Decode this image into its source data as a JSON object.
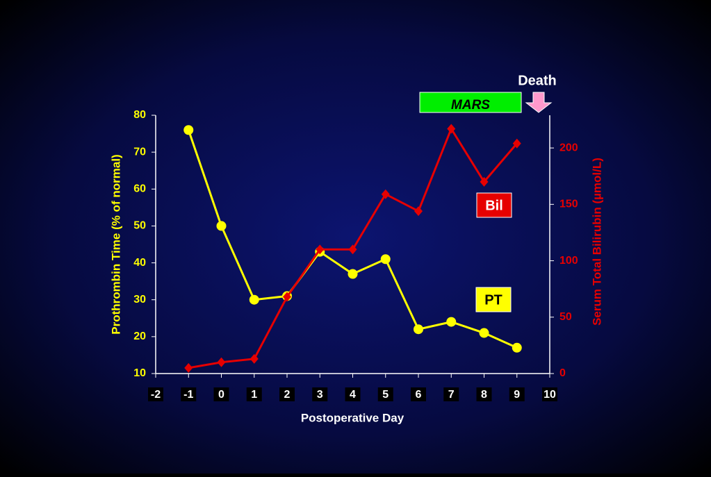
{
  "chart_data": {
    "type": "line",
    "x": [
      -1,
      0,
      1,
      2,
      3,
      4,
      5,
      6,
      7,
      8,
      9
    ],
    "xlim": [
      -2,
      10
    ],
    "xticks": [
      -2,
      -1,
      0,
      1,
      2,
      3,
      4,
      5,
      6,
      7,
      8,
      9,
      10
    ],
    "xlabel": "Postoperative Day",
    "ylabel": "Prothrombin Time (% of normal)",
    "y2label": "Serum Total Bilirubin (µmol/L)",
    "ylim": [
      10,
      80
    ],
    "yticks": [
      10,
      20,
      30,
      40,
      50,
      60,
      70,
      80
    ],
    "y2lim": [
      0,
      229
    ],
    "y2ticks": [
      0,
      50,
      100,
      150,
      200
    ],
    "series": [
      {
        "name": "PT",
        "color": "#ffff00",
        "values": [
          76,
          50,
          30,
          31,
          43,
          37,
          41,
          22,
          24,
          21,
          17
        ]
      },
      {
        "name": "Bil",
        "color": "#e60000",
        "axis": "y2",
        "values": [
          5,
          10,
          13,
          68,
          110,
          110,
          159,
          144,
          217,
          170,
          204
        ]
      }
    ],
    "annotations": [
      "MARS",
      "Death"
    ]
  }
}
